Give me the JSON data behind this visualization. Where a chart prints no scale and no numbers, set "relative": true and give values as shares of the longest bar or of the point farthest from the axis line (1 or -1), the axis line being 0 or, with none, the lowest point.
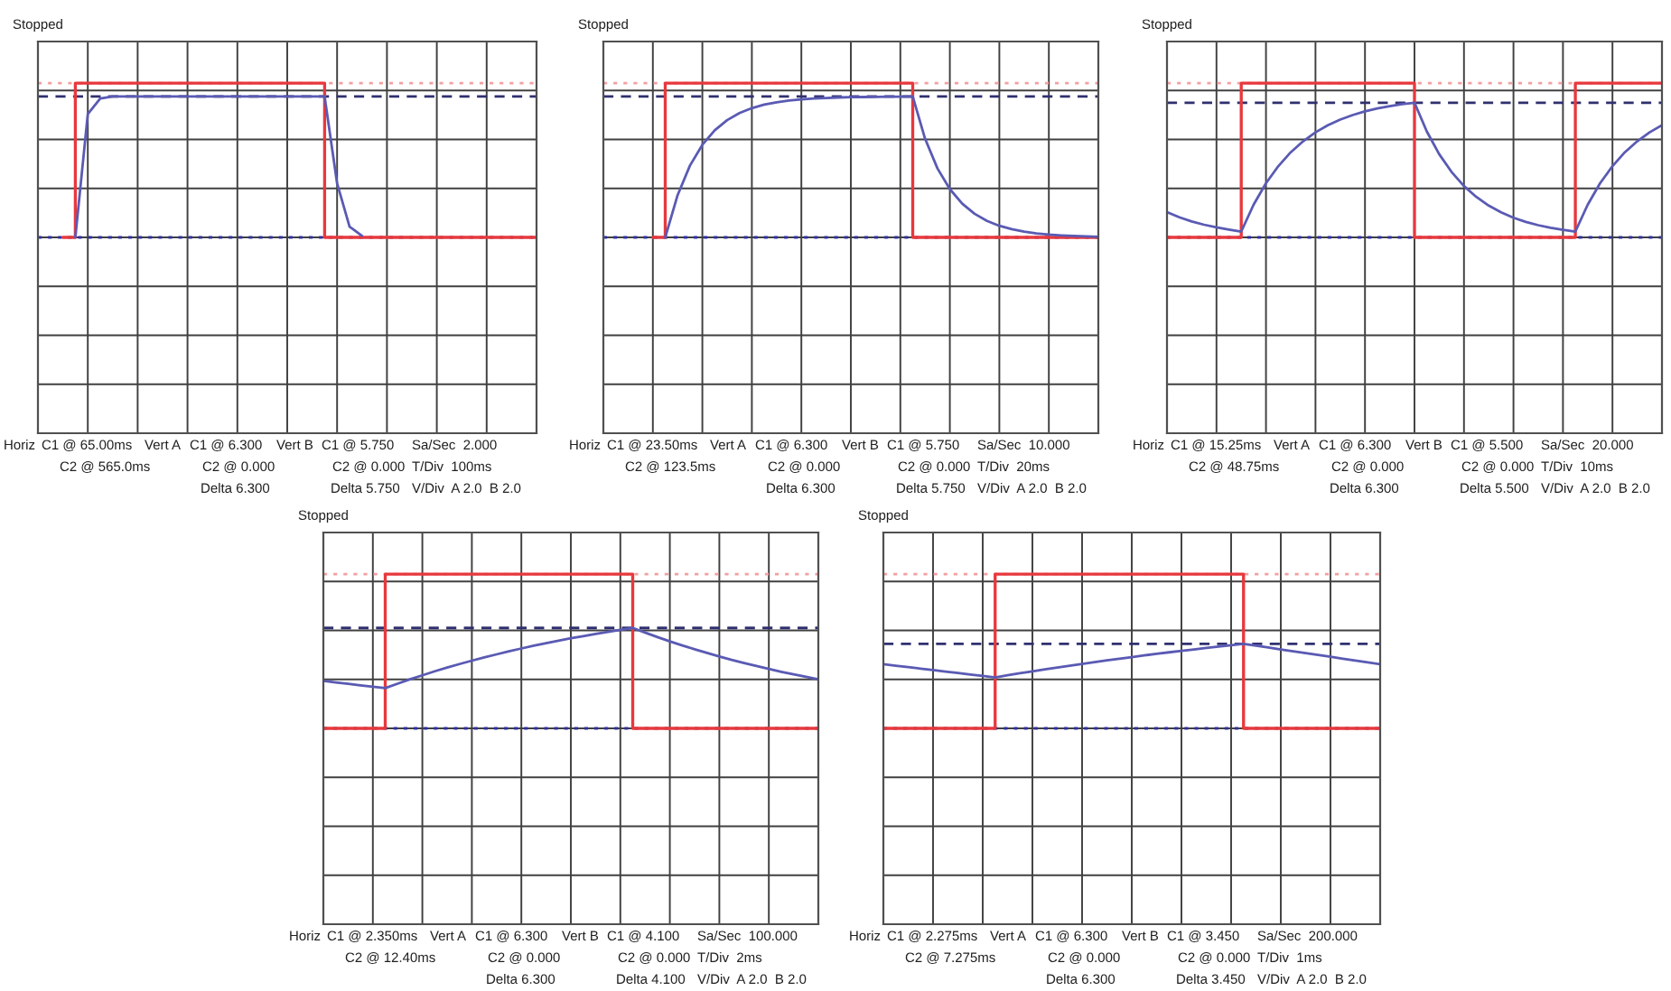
{
  "chart_data": [
    {
      "type": "line",
      "relative": true,
      "grid": true,
      "tick_labels": false,
      "categories": [
        null,
        null,
        null,
        null,
        null,
        null,
        null,
        null,
        null,
        null,
        null,
        null,
        null,
        null,
        null,
        null,
        null,
        null,
        null,
        null,
        null,
        null,
        null,
        null,
        null,
        null,
        null,
        null,
        null,
        null,
        null,
        null,
        null,
        null,
        null,
        null,
        null,
        null,
        null,
        null,
        null
      ],
      "series": [
        {
          "type": "step",
          "color": "#e8383d",
          "values": [
            null,
            null,
            0,
            1,
            1,
            1,
            1,
            1,
            1,
            1,
            1,
            1,
            1,
            1,
            1,
            1,
            1,
            1,
            1,
            1,
            1,
            1,
            1,
            0,
            0,
            0,
            0,
            0,
            0,
            0,
            0,
            0,
            0,
            0,
            0,
            0,
            0,
            0,
            0,
            0,
            0
          ]
        },
        {
          "type": "line",
          "color": "#5a5ab4",
          "values": [
            null,
            null,
            null,
            0,
            0.8,
            0.9,
            0.913,
            0.913,
            0.913,
            0.913,
            0.913,
            0.913,
            0.913,
            0.913,
            0.913,
            0.913,
            0.913,
            0.913,
            0.913,
            0.913,
            0.913,
            0.913,
            0.913,
            0.913,
            0.35,
            0.07,
            0.01,
            null,
            null,
            null,
            null,
            null,
            null,
            null,
            null,
            null,
            null,
            null,
            null,
            null,
            null
          ]
        }
      ],
      "ref_lines": [
        {
          "axis": "y",
          "value": 1,
          "color": "#f4a0a0",
          "line_style": "dotted"
        },
        {
          "axis": "y",
          "value": 0.913,
          "color": "#303070",
          "line_style": "dashed"
        }
      ],
      "annotations": [
        "Stopped",
        "Horiz",
        "C1 @ 65.00ms",
        "Vert A",
        "C1 @ 6.300",
        "Vert B",
        "C1 @ 5.750",
        "Sa/Sec  2.000",
        "C2 @ 565.0ms",
        "C2 @ 0.000",
        "C2 @ 0.000",
        "T/Div  100ms",
        "Delta 6.300",
        "Delta 5.750",
        "V/Div  A 2.0  B 2.0"
      ]
    },
    {
      "type": "line",
      "relative": true,
      "grid": true,
      "tick_labels": false,
      "categories": [
        null,
        null,
        null,
        null,
        null,
        null,
        null,
        null,
        null,
        null,
        null,
        null,
        null,
        null,
        null,
        null,
        null,
        null,
        null,
        null,
        null,
        null,
        null,
        null,
        null,
        null,
        null,
        null,
        null,
        null,
        null,
        null,
        null,
        null,
        null,
        null,
        null,
        null,
        null,
        null,
        null
      ],
      "series": [
        {
          "type": "step",
          "color": "#e8383d",
          "values": [
            null,
            null,
            null,
            null,
            0,
            1,
            1,
            1,
            1,
            1,
            1,
            1,
            1,
            1,
            1,
            1,
            1,
            1,
            1,
            1,
            1,
            1,
            1,
            1,
            1,
            0,
            0,
            0,
            0,
            0,
            0,
            0,
            0,
            0,
            0,
            0,
            0,
            0,
            0,
            0,
            0
          ]
        },
        {
          "type": "line",
          "color": "#5a5ab4",
          "values": [
            null,
            null,
            null,
            null,
            null,
            0,
            0.274,
            0.466,
            0.6,
            0.694,
            0.76,
            0.806,
            0.838,
            0.861,
            0.876,
            0.887,
            0.895,
            0.9,
            0.904,
            0.907,
            0.909,
            0.91,
            0.911,
            0.912,
            0.912,
            0.913,
            0.639,
            0.447,
            0.313,
            0.219,
            0.153,
            0.107,
            0.075,
            0.053,
            0.037,
            0.026,
            0.018,
            0.013,
            0.009,
            0.006,
            0.004
          ]
        }
      ],
      "ref_lines": [
        {
          "axis": "y",
          "value": 1,
          "color": "#f4a0a0",
          "line_style": "dotted"
        },
        {
          "axis": "y",
          "value": 0.913,
          "color": "#303070",
          "line_style": "dashed"
        }
      ],
      "annotations": [
        "Stopped",
        "Horiz",
        "C1 @ 23.50ms",
        "Vert A",
        "C1 @ 6.300",
        "Vert B",
        "C1 @ 5.750",
        "Sa/Sec  10.000",
        "C2 @ 123.5ms",
        "C2 @ 0.000",
        "C2 @ 0.000",
        "T/Div  20ms",
        "Delta 6.300",
        "Delta 5.750",
        "V/Div  A 2.0  B 2.0"
      ]
    },
    {
      "type": "line",
      "relative": true,
      "grid": true,
      "tick_labels": false,
      "categories": [
        null,
        null,
        null,
        null,
        null,
        null,
        null,
        null,
        null,
        null,
        null,
        null,
        null,
        null,
        null,
        null,
        null,
        null,
        null,
        null,
        null,
        null,
        null,
        null,
        null,
        null,
        null,
        null,
        null,
        null,
        null,
        null,
        null,
        null,
        null,
        null,
        null,
        null,
        null,
        null,
        null
      ],
      "series": [
        {
          "type": "step",
          "color": "#e8383d",
          "values": [
            0,
            0,
            0,
            0,
            0,
            0,
            1,
            1,
            1,
            1,
            1,
            1,
            1,
            1,
            1,
            1,
            1,
            1,
            1,
            1,
            0,
            0,
            0,
            0,
            0,
            0,
            0,
            0,
            0,
            0,
            0,
            0,
            0,
            1,
            1,
            1,
            1,
            1,
            1,
            1,
            1
          ]
        },
        {
          "type": "line",
          "color": "#5a5ab4",
          "values": [
            0.164,
            0.13,
            0.103,
            0.082,
            0.065,
            0.051,
            0.038,
            0.212,
            0.351,
            0.462,
            0.552,
            0.623,
            0.681,
            0.727,
            0.764,
            0.793,
            0.817,
            0.836,
            0.851,
            0.864,
            0.873,
            0.686,
            0.539,
            0.424,
            0.333,
            0.262,
            0.206,
            0.162,
            0.127,
            0.1,
            0.079,
            0.062,
            0.049,
            0.038,
            0.212,
            0.351,
            0.462,
            0.552,
            0.623,
            0.681,
            0.727
          ]
        }
      ],
      "ref_lines": [
        {
          "axis": "y",
          "value": 1,
          "color": "#f4a0a0",
          "line_style": "dotted"
        },
        {
          "axis": "y",
          "value": 0.873,
          "color": "#303070",
          "line_style": "dashed"
        }
      ],
      "annotations": [
        "Stopped",
        "Horiz",
        "C1 @ 15.25ms",
        "Vert A",
        "C1 @ 6.300",
        "Vert B",
        "C1 @ 5.500",
        "Sa/Sec  20.000",
        "C2 @ 48.75ms",
        "C2 @ 0.000",
        "C2 @ 0.000",
        "T/Div  10ms",
        "Delta 6.300",
        "Delta 5.500",
        "V/Div  A 2.0  B 2.0"
      ]
    },
    {
      "type": "line",
      "relative": true,
      "grid": true,
      "tick_labels": false,
      "categories": [
        null,
        null,
        null,
        null,
        null,
        null,
        null,
        null,
        null,
        null,
        null,
        null,
        null,
        null,
        null,
        null,
        null,
        null,
        null,
        null,
        null,
        null,
        null,
        null,
        null,
        null,
        null,
        null,
        null,
        null,
        null,
        null,
        null,
        null,
        null,
        null,
        null,
        null,
        null,
        null,
        null
      ],
      "series": [
        {
          "type": "step",
          "color": "#e8383d",
          "values": [
            0,
            0,
            0,
            0,
            0,
            1,
            1,
            1,
            1,
            1,
            1,
            1,
            1,
            1,
            1,
            1,
            1,
            1,
            1,
            1,
            1,
            1,
            1,
            1,
            1,
            0,
            0,
            0,
            0,
            0,
            0,
            0,
            0,
            0,
            0,
            0,
            0,
            0,
            0,
            0,
            0
          ]
        },
        {
          "type": "line",
          "color": "#5a5ab4",
          "values": [
            0.308,
            0.298,
            0.289,
            0.279,
            0.27,
            0.261,
            0.29,
            0.318,
            0.344,
            0.37,
            0.394,
            0.417,
            0.439,
            0.46,
            0.48,
            0.5,
            0.518,
            0.536,
            0.552,
            0.568,
            0.584,
            0.598,
            0.612,
            0.626,
            0.639,
            0.651,
            0.621,
            0.592,
            0.564,
            0.538,
            0.513,
            0.489,
            0.466,
            0.444,
            0.424,
            0.404,
            0.385,
            0.367,
            0.35,
            0.334,
            0.318
          ]
        }
      ],
      "ref_lines": [
        {
          "axis": "y",
          "value": 1,
          "color": "#f4a0a0",
          "line_style": "dotted"
        },
        {
          "axis": "y",
          "value": 0.651,
          "color": "#303070",
          "line_style": "dashed"
        }
      ],
      "annotations": [
        "Stopped",
        "Horiz",
        "C1 @ 2.350ms",
        "Vert A",
        "C1 @ 6.300",
        "Vert B",
        "C1 @ 4.100",
        "Sa/Sec  100.000",
        "C2 @ 12.40ms",
        "C2 @ 0.000",
        "C2 @ 0.000",
        "T/Div  2ms",
        "Delta 6.300",
        "Delta 4.100",
        "V/Div  A 2.0  B 2.0"
      ]
    },
    {
      "type": "line",
      "relative": true,
      "grid": true,
      "tick_labels": false,
      "categories": [
        null,
        null,
        null,
        null,
        null,
        null,
        null,
        null,
        null,
        null,
        null,
        null,
        null,
        null,
        null,
        null,
        null,
        null,
        null,
        null,
        null,
        null,
        null,
        null,
        null,
        null,
        null,
        null,
        null,
        null,
        null,
        null,
        null,
        null,
        null,
        null,
        null,
        null,
        null,
        null,
        null
      ],
      "series": [
        {
          "type": "step",
          "color": "#e8383d",
          "values": [
            0,
            0,
            0,
            0,
            0,
            0,
            0,
            0,
            0,
            1,
            1,
            1,
            1,
            1,
            1,
            1,
            1,
            1,
            1,
            1,
            1,
            1,
            1,
            1,
            1,
            1,
            1,
            1,
            1,
            0,
            0,
            0,
            0,
            0,
            0,
            0,
            0,
            0,
            0,
            0,
            0
          ]
        },
        {
          "type": "line",
          "color": "#5a5ab4",
          "values": [
            0.416,
            0.406,
            0.397,
            0.387,
            0.378,
            0.368,
            0.359,
            0.349,
            0.34,
            0.33,
            0.344,
            0.357,
            0.37,
            0.382,
            0.394,
            0.406,
            0.418,
            0.429,
            0.441,
            0.452,
            0.462,
            0.473,
            0.483,
            0.493,
            0.502,
            0.512,
            0.521,
            0.53,
            0.539,
            0.548,
            0.536,
            0.524,
            0.512,
            0.5,
            0.488,
            0.476,
            0.464,
            0.452,
            0.44,
            0.428,
            0.416
          ]
        }
      ],
      "ref_lines": [
        {
          "axis": "y",
          "value": 1,
          "color": "#f4a0a0",
          "line_style": "dotted"
        },
        {
          "axis": "y",
          "value": 0.548,
          "color": "#303070",
          "line_style": "dashed"
        }
      ],
      "annotations": [
        "Stopped",
        "Horiz",
        "C1 @ 2.275ms",
        "Vert A",
        "C1 @ 6.300",
        "Vert B",
        "C1 @ 3.450",
        "Sa/Sec  200.000",
        "C2 @ 7.275ms",
        "C2 @ 0.000",
        "C2 @ 0.000",
        "T/Div  1ms",
        "Delta 6.300",
        "Delta 3.450",
        "V/Div  A 2.0  B 2.0"
      ]
    }
  ]
}
